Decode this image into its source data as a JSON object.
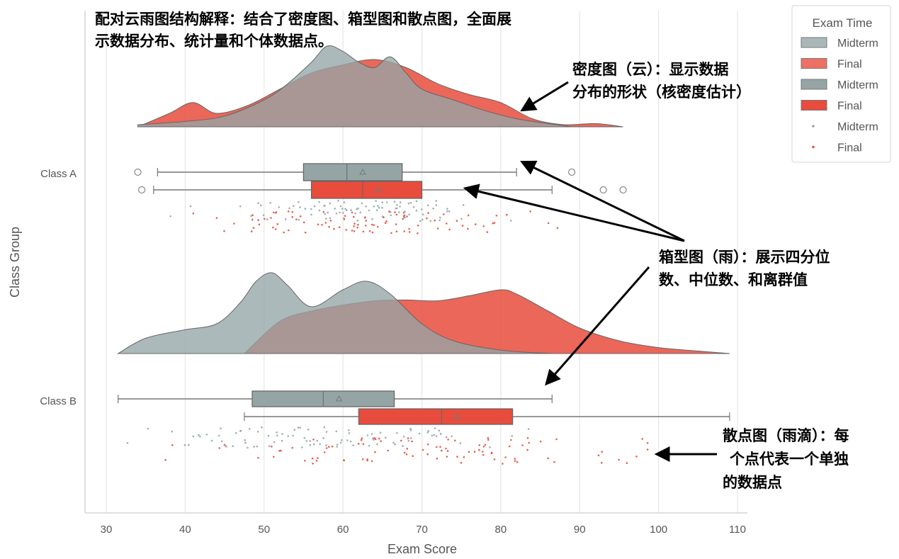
{
  "chart_data": {
    "type": "raincloud",
    "xlabel": "Exam Score",
    "ylabel": "Class Group",
    "xlim": [
      28,
      112
    ],
    "xticks": [
      30,
      40,
      50,
      60,
      70,
      80,
      90,
      100,
      110
    ],
    "grid": "vertical",
    "legend": {
      "title": "Exam Time",
      "placement": "top-right",
      "entries": [
        {
          "label": "Midterm",
          "kind": "density",
          "color": "#95a5a6"
        },
        {
          "label": "Final",
          "kind": "density",
          "color": "#e74c3c"
        },
        {
          "label": "Midterm",
          "kind": "box",
          "color": "#95a5a6"
        },
        {
          "label": "Final",
          "kind": "box",
          "color": "#e74c3c"
        },
        {
          "label": "Midterm",
          "kind": "points",
          "color": "#95a5a6"
        },
        {
          "label": "Final",
          "kind": "points",
          "color": "#e74c3c"
        }
      ]
    },
    "colors": {
      "Midterm": "#95a5a6",
      "Final": "#e74c3c"
    },
    "groups": [
      {
        "name": "Class A",
        "density": {
          "Midterm": {
            "x": [
              34,
              40,
              45,
              50,
              53,
              56,
              58,
              60,
              62,
              64,
              66,
              68,
              70,
              74,
              78,
              82,
              86,
              89
            ],
            "y": [
              0.004,
              0.01,
              0.02,
              0.05,
              0.08,
              0.12,
              0.15,
              0.14,
              0.12,
              0.11,
              0.13,
              0.1,
              0.07,
              0.05,
              0.03,
              0.015,
              0.006,
              0.0
            ]
          },
          "Final": {
            "x": [
              34,
              38,
              41,
              44,
              48,
              52,
              56,
              60,
              64,
              68,
              72,
              76,
              80,
              84,
              88,
              92,
              95.5
            ],
            "y": [
              0.0,
              0.025,
              0.045,
              0.025,
              0.04,
              0.07,
              0.1,
              0.115,
              0.125,
              0.11,
              0.08,
              0.06,
              0.045,
              0.015,
              0.004,
              0.006,
              0.0
            ]
          }
        },
        "box": {
          "Midterm": {
            "whislo": 36.5,
            "q1": 55,
            "med": 60.5,
            "q3": 67.5,
            "whishi": 82,
            "fliers": [
              34,
              89
            ]
          },
          "Final": {
            "whislo": 36,
            "q1": 56,
            "med": 62.5,
            "q3": 70,
            "whishi": 86.5,
            "fliers": [
              34.5,
              93,
              95.5
            ]
          }
        },
        "points_range": {
          "Midterm": [
            33,
            90
          ],
          "Final": [
            33,
            96
          ]
        }
      },
      {
        "name": "Class B",
        "density": {
          "Midterm": {
            "x": [
              31.5,
              35,
              40,
              44,
              47,
              49,
              51,
              53,
              56,
              60,
              63,
              66,
              70,
              74,
              80,
              86.5
            ],
            "y": [
              0.0,
              0.018,
              0.028,
              0.035,
              0.06,
              0.085,
              0.095,
              0.08,
              0.055,
              0.075,
              0.085,
              0.07,
              0.035,
              0.015,
              0.004,
              0.0
            ]
          },
          "Final": {
            "x": [
              47.5,
              52,
              56,
              60,
              64,
              68,
              72,
              76,
              80,
              82,
              86,
              90,
              95,
              100,
              105,
              109
            ],
            "y": [
              0.0,
              0.038,
              0.05,
              0.057,
              0.062,
              0.063,
              0.062,
              0.068,
              0.075,
              0.07,
              0.05,
              0.03,
              0.015,
              0.007,
              0.003,
              0.0
            ]
          }
        },
        "box": {
          "Midterm": {
            "whislo": 31.5,
            "q1": 48.5,
            "med": 57.5,
            "q3": 66.5,
            "whishi": 86.5,
            "fliers": []
          },
          "Final": {
            "whislo": 47.5,
            "q1": 62,
            "med": 72.5,
            "q3": 81.5,
            "whishi": 109,
            "fliers": []
          }
        },
        "points_range": {
          "Midterm": [
            31,
            93
          ],
          "Final": [
            31,
            100
          ]
        }
      }
    ]
  },
  "annotations": {
    "title_lines": [
      "配对云雨图结构解释：结合了密度图、箱型图和散点图，全面展",
      "示数据分布、统计量和个体数据点。"
    ],
    "density_lines": [
      "密度图（云）：显示数据",
      "分布的形状（核密度估计）"
    ],
    "box_lines": [
      "箱型图（雨）：展示四分位",
      "数、中位数、和离群值"
    ],
    "scatter_lines": [
      "散点图（雨滴）：每",
      "个点代表一个单独",
      "的数据点"
    ]
  }
}
